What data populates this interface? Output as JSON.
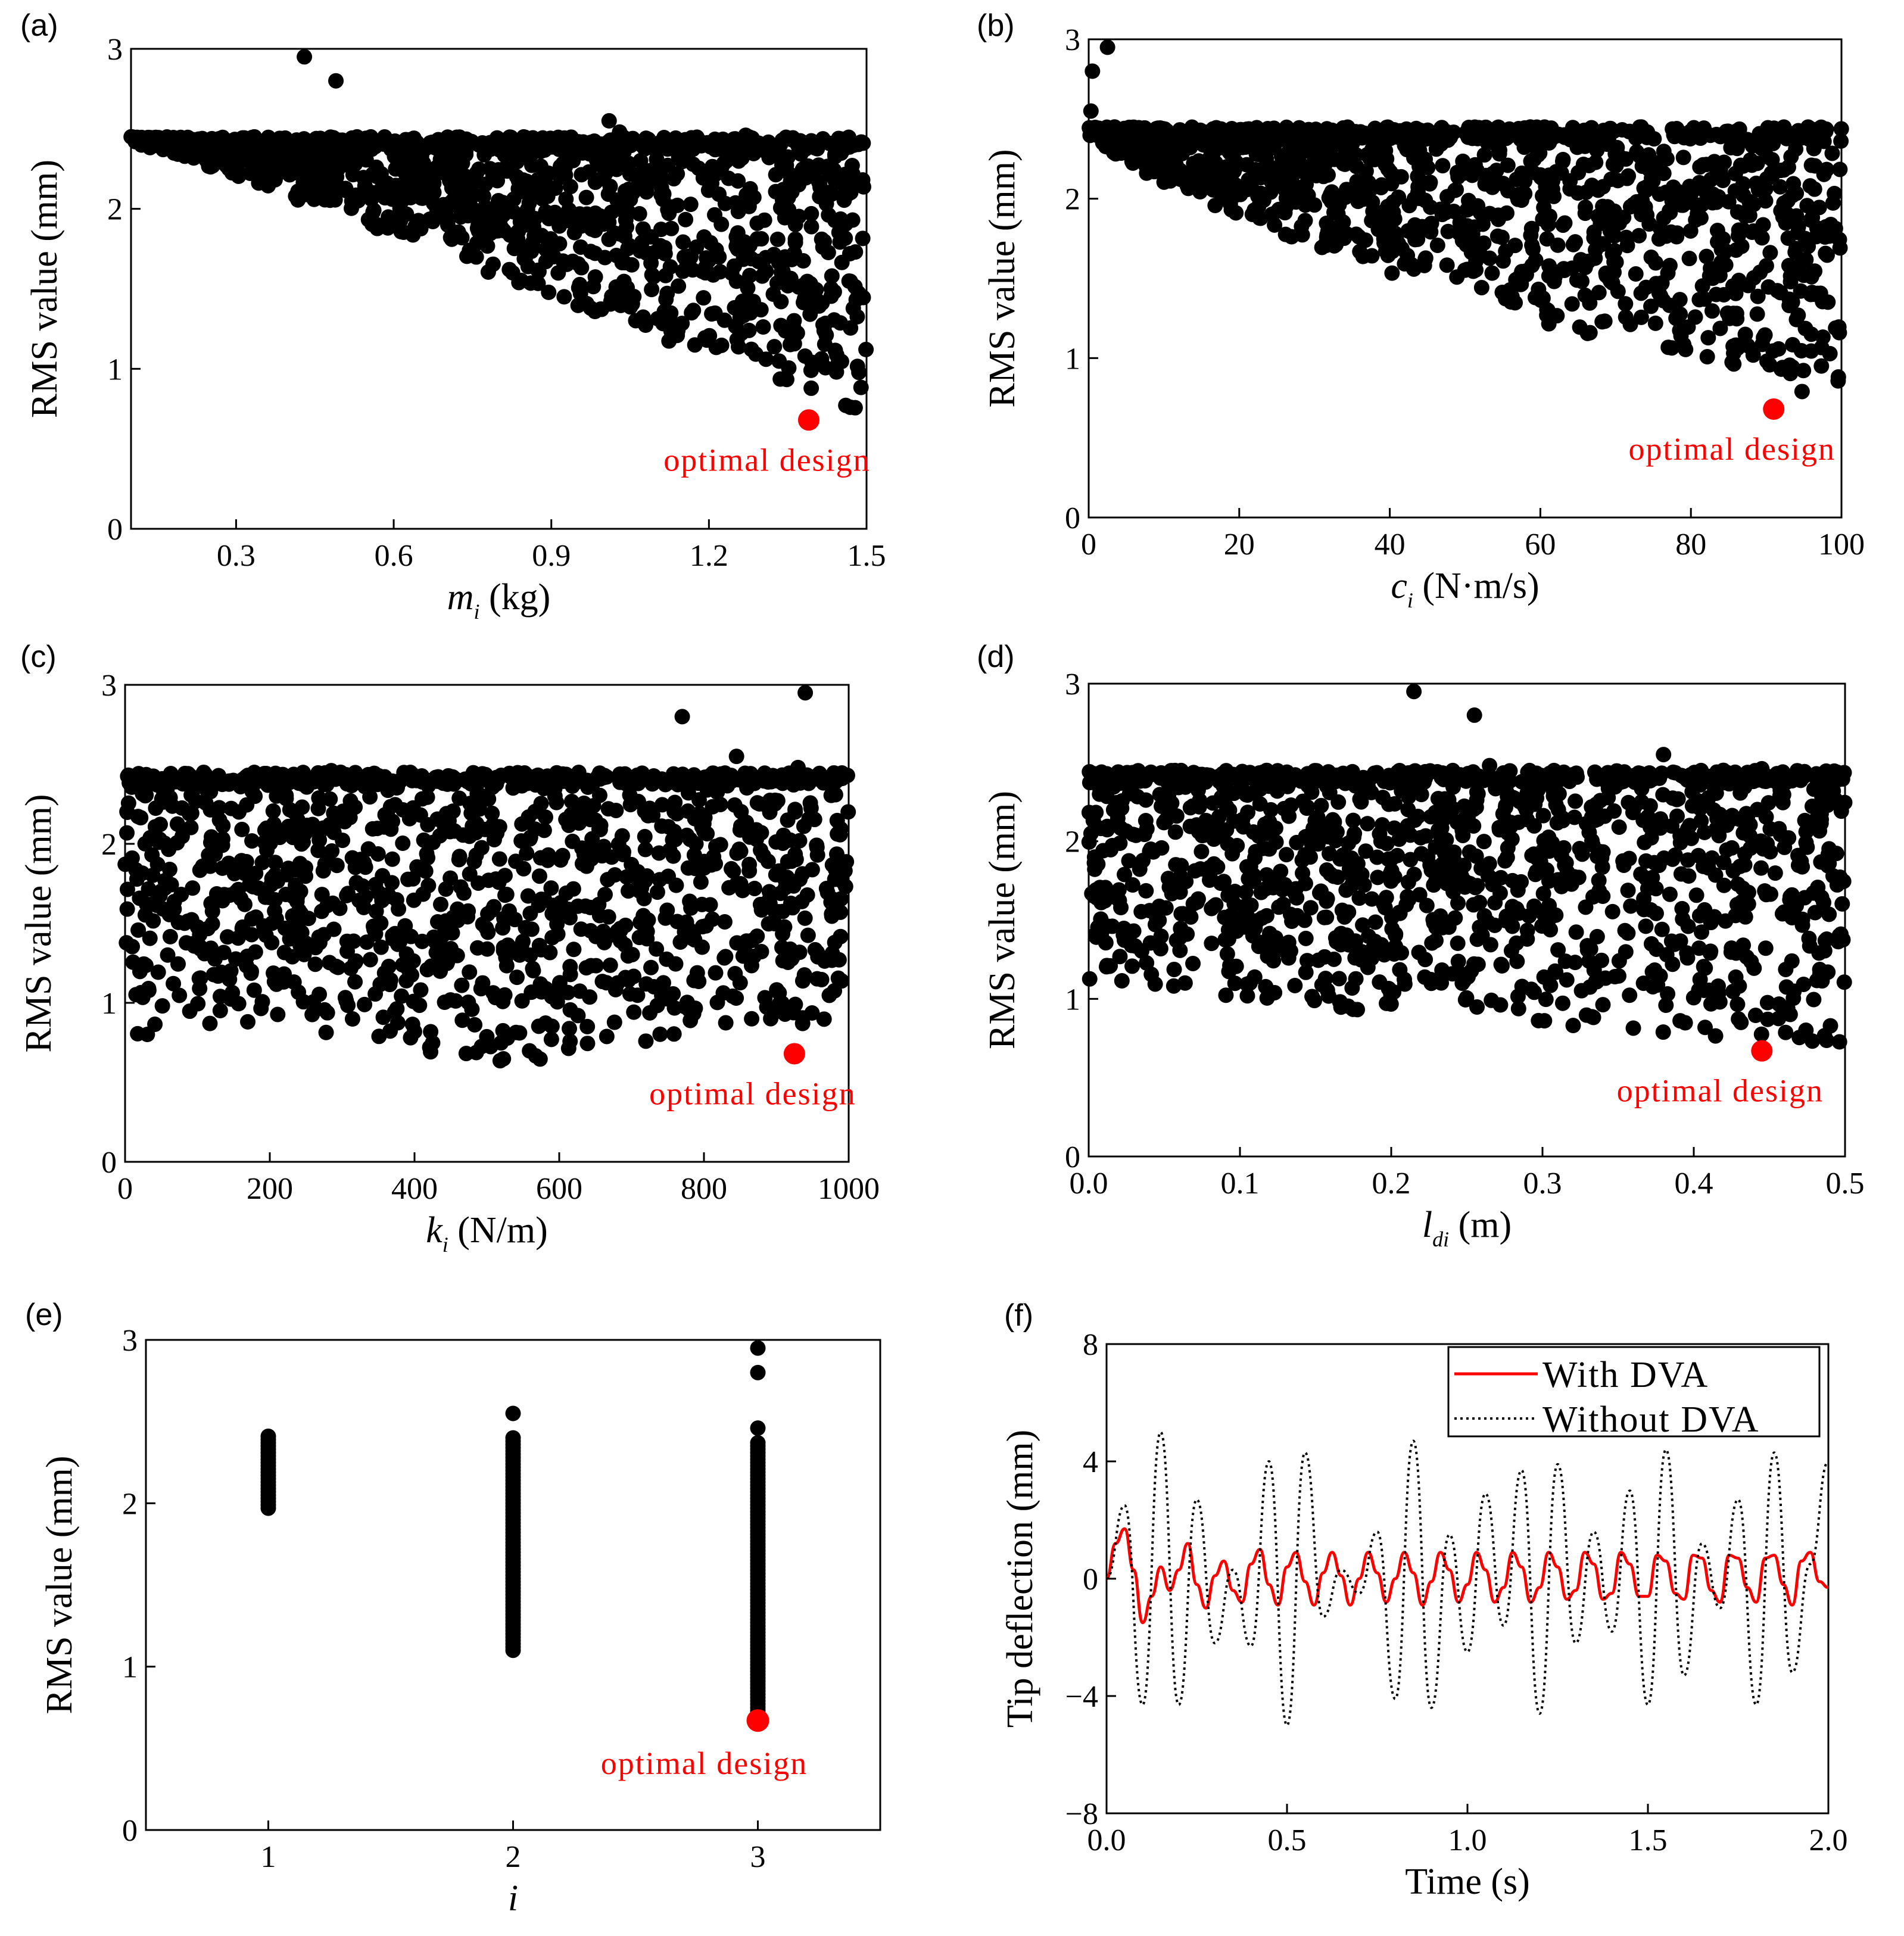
{
  "chart_data": [
    {
      "id": "a",
      "type": "scatter",
      "panel_label": "(a)",
      "xlabel_var": "m",
      "xlabel_sub": "i",
      "xlabel_unit": "(kg)",
      "ylabel": "RMS value (mm)",
      "xlim": [
        0.1,
        1.5
      ],
      "ylim": [
        0,
        3
      ],
      "xticks": [
        0.3,
        0.6,
        0.9,
        1.2,
        1.5
      ],
      "xtick_labels": [
        "0.3",
        "0.6",
        "0.9",
        "1.2",
        "1.5"
      ],
      "yticks": [
        0,
        1,
        2,
        3
      ],
      "ytick_labels": [
        "0",
        "1",
        "2",
        "3"
      ],
      "ceiling": 2.45,
      "outliers": [
        [
          0.43,
          2.95
        ],
        [
          0.49,
          2.8
        ],
        [
          1.01,
          2.55
        ],
        [
          1.03,
          2.48
        ],
        [
          1.27,
          2.46
        ]
      ],
      "cloud_rule": "RMS >= 2.45 - 1.75 * (m_i - 0.1) / 1.4",
      "optimal": {
        "x": 1.39,
        "y": 0.68,
        "label": "optimal design"
      }
    },
    {
      "id": "b",
      "type": "scatter",
      "panel_label": "(b)",
      "xlabel_var": "c",
      "xlabel_sub": "i",
      "xlabel_unit": "(N·m/s)",
      "ylabel": "RMS value (mm)",
      "xlim": [
        0,
        100
      ],
      "ylim": [
        0,
        3
      ],
      "xticks": [
        0,
        20,
        40,
        60,
        80,
        100
      ],
      "xtick_labels": [
        "0",
        "20",
        "40",
        "60",
        "80",
        "100"
      ],
      "yticks": [
        0,
        1,
        2,
        3
      ],
      "ytick_labels": [
        "0",
        "1",
        "2",
        "3"
      ],
      "ceiling": 2.45,
      "outliers": [
        [
          0.5,
          2.8
        ],
        [
          2.5,
          2.95
        ],
        [
          0.3,
          2.55
        ]
      ],
      "cloud_rule": "RMS >= 2.45 - 1.75 * (c_i / 100)^0.7",
      "optimal": {
        "x": 91,
        "y": 0.68,
        "label": "optimal design"
      }
    },
    {
      "id": "c",
      "type": "scatter",
      "panel_label": "(c)",
      "xlabel_var": "k",
      "xlabel_sub": "i",
      "xlabel_unit": "(N/m)",
      "ylabel": "RMS value (mm)",
      "xlim": [
        0,
        1000
      ],
      "ylim": [
        0,
        3
      ],
      "xticks": [
        0,
        200,
        400,
        600,
        800,
        1000
      ],
      "xtick_labels": [
        "0",
        "200",
        "400",
        "600",
        "800",
        "1000"
      ],
      "yticks": [
        0,
        1,
        2,
        3
      ],
      "ytick_labels": [
        "0",
        "1",
        "2",
        "3"
      ],
      "ceiling": 2.45,
      "outliers": [
        [
          770,
          2.8
        ],
        [
          940,
          2.95
        ],
        [
          845,
          2.55
        ],
        [
          930,
          2.48
        ],
        [
          285,
          2.46
        ]
      ],
      "cloud_rule": "RMS >= 0.7 to 0.9 across k_i",
      "optimal": {
        "x": 925,
        "y": 0.68,
        "label": "optimal design"
      }
    },
    {
      "id": "d",
      "type": "scatter",
      "panel_label": "(d)",
      "xlabel_var": "l",
      "xlabel_sub": "di",
      "xlabel_unit": "(m)",
      "ylabel": "RMS value (mm)",
      "xlim": [
        0,
        0.5
      ],
      "ylim": [
        0,
        3
      ],
      "xticks": [
        0.0,
        0.1,
        0.2,
        0.3,
        0.4,
        0.5
      ],
      "xtick_labels": [
        "0.0",
        "0.1",
        "0.2",
        "0.3",
        "0.4",
        "0.5"
      ],
      "yticks": [
        0,
        1,
        2,
        3
      ],
      "ytick_labels": [
        "0",
        "1",
        "2",
        "3"
      ],
      "ceiling": 2.45,
      "outliers": [
        [
          0.215,
          2.95
        ],
        [
          0.255,
          2.8
        ],
        [
          0.38,
          2.55
        ],
        [
          0.265,
          2.48
        ],
        [
          0.445,
          2.46
        ]
      ],
      "cloud_rule": "RMS >= 1.05 - 0.35 * l_di / 0.5",
      "optimal": {
        "x": 0.445,
        "y": 0.67,
        "label": "optimal design"
      }
    },
    {
      "id": "e",
      "type": "scatter",
      "panel_label": "(e)",
      "xlabel_var": "i",
      "ylabel": "RMS value (mm)",
      "xlim": [
        0.5,
        3.5
      ],
      "ylim": [
        0,
        3
      ],
      "xticks": [
        1,
        2,
        3
      ],
      "xtick_labels": [
        "1",
        "2",
        "3"
      ],
      "yticks": [
        0,
        1,
        2,
        3
      ],
      "ytick_labels": [
        "0",
        "1",
        "2",
        "3"
      ],
      "columns": [
        {
          "i": 1,
          "min": 1.97,
          "max": 2.42
        },
        {
          "i": 2,
          "min": 1.1,
          "max": 2.42,
          "extra": [
            2.55
          ]
        },
        {
          "i": 3,
          "min": 0.67,
          "max": 2.38,
          "extra": [
            2.46,
            2.8,
            2.95
          ]
        }
      ],
      "optimal": {
        "x": 3,
        "y": 0.67,
        "label": "optimal design"
      }
    },
    {
      "id": "f",
      "type": "line",
      "panel_label": "(f)",
      "xlabel": "Time (s)",
      "ylabel": "Tip deflection (mm)",
      "xlim": [
        0,
        2
      ],
      "ylim": [
        -8,
        8
      ],
      "xticks": [
        0,
        0.5,
        1.0,
        1.5,
        2.0
      ],
      "xtick_labels": [
        "0.0",
        "0.5",
        "1.0",
        "1.5",
        "2.0"
      ],
      "yticks": [
        -8,
        -4,
        0,
        4,
        8
      ],
      "ytick_labels": [
        "−8",
        "−4",
        "0",
        "4",
        "8"
      ],
      "series": [
        {
          "name": "With DVA",
          "color": "#ff0000",
          "style": "solid",
          "x": [
            0,
            0.025,
            0.05,
            0.075,
            0.1,
            0.125,
            0.15,
            0.175,
            0.2,
            0.225,
            0.25,
            0.275,
            0.3,
            0.325,
            0.35,
            0.375,
            0.4,
            0.425,
            0.45,
            0.475,
            0.5,
            0.525,
            0.55,
            0.575,
            0.6,
            0.625,
            0.65,
            0.675,
            0.7,
            0.725,
            0.75,
            0.775,
            0.8,
            0.825,
            0.85,
            0.875,
            0.9,
            0.925,
            0.95,
            0.975,
            1.0,
            1.025,
            1.05,
            1.075,
            1.1,
            1.125,
            1.15,
            1.175,
            1.2,
            1.225,
            1.25,
            1.275,
            1.3,
            1.325,
            1.35,
            1.375,
            1.4,
            1.425,
            1.45,
            1.475,
            1.5,
            1.525,
            1.55,
            1.575,
            1.6,
            1.625,
            1.65,
            1.675,
            1.7,
            1.725,
            1.75,
            1.775,
            1.8,
            1.825,
            1.85,
            1.875,
            1.9,
            1.925,
            1.95,
            1.975,
            2.0
          ],
          "values": [
            0,
            1.2,
            1.7,
            0.3,
            -1.5,
            -0.6,
            0.4,
            -0.4,
            0.3,
            1.2,
            -0.2,
            -1.0,
            0.1,
            0.6,
            -0.4,
            -0.8,
            0.5,
            1.0,
            -0.2,
            -0.9,
            0.4,
            0.9,
            -0.1,
            -0.9,
            0.2,
            0.9,
            0.1,
            -0.9,
            0.0,
            0.9,
            0.2,
            -0.8,
            0.0,
            0.9,
            0.2,
            -0.9,
            -0.1,
            0.9,
            0.3,
            -0.8,
            -0.2,
            0.9,
            0.3,
            -0.8,
            -0.3,
            0.9,
            0.4,
            -0.8,
            -0.3,
            0.9,
            0.4,
            -0.7,
            -0.4,
            0.9,
            0.5,
            -0.7,
            -0.5,
            0.9,
            0.5,
            -0.6,
            -0.6,
            0.8,
            0.6,
            -0.5,
            -0.7,
            0.8,
            0.7,
            -0.4,
            -0.8,
            0.8,
            0.7,
            -0.3,
            -0.8,
            0.7,
            0.8,
            -0.2,
            -0.9,
            0.6,
            0.9,
            -0.1,
            -0.3
          ]
        },
        {
          "name": "Without DVA",
          "color": "#000000",
          "style": "dotted",
          "x": [
            0,
            0.05,
            0.1,
            0.15,
            0.2,
            0.25,
            0.3,
            0.35,
            0.4,
            0.45,
            0.5,
            0.55,
            0.6,
            0.65,
            0.7,
            0.75,
            0.8,
            0.85,
            0.9,
            0.95,
            1.0,
            1.05,
            1.1,
            1.15,
            1.2,
            1.25,
            1.3,
            1.35,
            1.4,
            1.45,
            1.5,
            1.55,
            1.6,
            1.65,
            1.7,
            1.75,
            1.8,
            1.85,
            1.9,
            1.95,
            2.0
          ],
          "values": [
            0,
            2.5,
            -4.3,
            5.0,
            -4.3,
            2.7,
            -2.2,
            0.3,
            -2.3,
            4.0,
            -5.0,
            4.3,
            -1.3,
            0.3,
            -0.5,
            1.6,
            -4.1,
            4.7,
            -4.4,
            1.5,
            -2.5,
            2.9,
            -1.6,
            3.7,
            -4.6,
            3.9,
            -2.2,
            1.6,
            -1.8,
            3.0,
            -4.3,
            4.4,
            -3.3,
            1.2,
            -1.0,
            2.7,
            -4.3,
            4.3,
            -3.2,
            0.5,
            4.0
          ]
        }
      ]
    }
  ]
}
